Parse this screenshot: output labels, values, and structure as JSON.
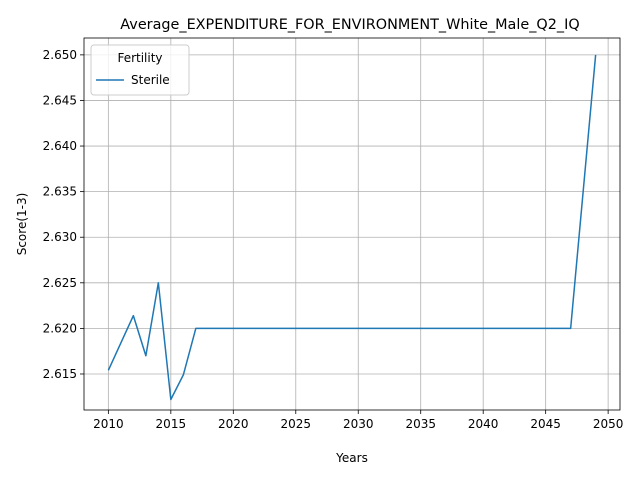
{
  "chart_data": {
    "type": "line",
    "title": "Average_EXPENDITURE_FOR_ENVIRONMENT_White_Male_Q2_IQ",
    "xlabel": "Years",
    "ylabel": "Score(1-3)",
    "xlim": [
      2008.05,
      2050.95
    ],
    "ylim": [
      2.61105,
      2.65185
    ],
    "x_ticks": [
      2010,
      2015,
      2020,
      2025,
      2030,
      2035,
      2040,
      2045,
      2050
    ],
    "y_ticks": [
      2.615,
      2.62,
      2.625,
      2.63,
      2.635,
      2.64,
      2.645,
      2.65
    ],
    "y_tick_labels": [
      "2.615",
      "2.620",
      "2.625",
      "2.630",
      "2.635",
      "2.640",
      "2.645",
      "2.650"
    ],
    "grid": true,
    "legend": {
      "title": "Fertility",
      "placement": "top-left"
    },
    "series": [
      {
        "name": "Sterile",
        "color": "#1f77b4",
        "x": [
          2010,
          2012,
          2013,
          2014,
          2015,
          2016,
          2017,
          2020,
          2025,
          2030,
          2035,
          2040,
          2045,
          2047,
          2049
        ],
        "values": [
          2.6154,
          2.6214,
          2.617,
          2.625,
          2.6122,
          2.6149,
          2.62,
          2.62,
          2.62,
          2.62,
          2.62,
          2.62,
          2.62,
          2.62,
          2.65
        ]
      }
    ]
  }
}
